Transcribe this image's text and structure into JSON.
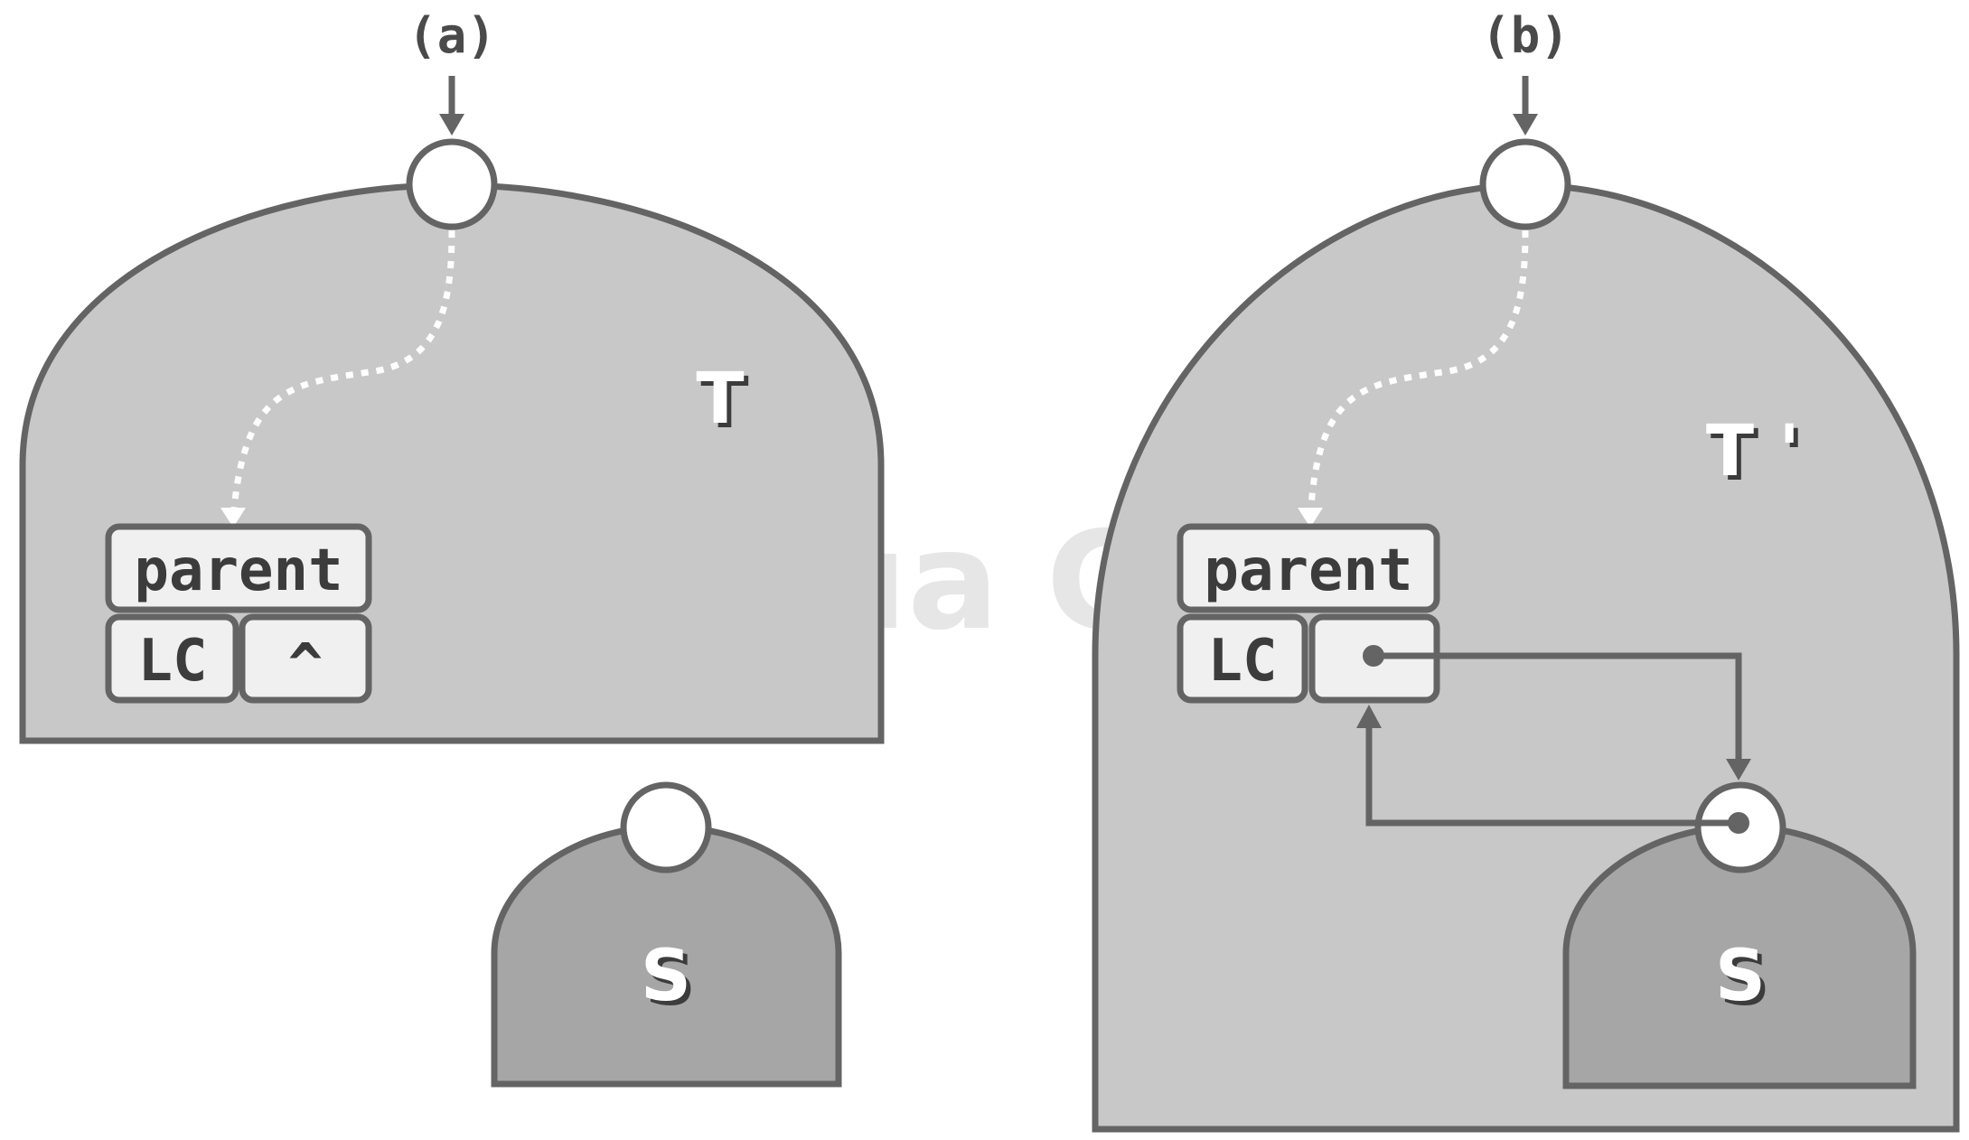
{
  "colors": {
    "stroke": "#646464",
    "tree_fill": "#c8c8c8",
    "subtree_fill": "#a6a6a6",
    "cell_fill": "#f0f0f0",
    "node_fill": "#ffffff",
    "text_dark": "#3c3c3c",
    "label_white": "#ffffff",
    "watermark": "#d2d2d2"
  },
  "watermark": "© Tsinghua Computer",
  "panel_a": {
    "label": "(a)",
    "tree_label": "T",
    "subtree_label": "S",
    "node": {
      "parent_label": "parent",
      "lc_label": "LC",
      "rc_label": "^"
    }
  },
  "panel_b": {
    "label": "(b)",
    "tree_label": "T '",
    "subtree_label": "S",
    "node": {
      "parent_label": "parent",
      "lc_label": "LC",
      "rc_label": ""
    }
  },
  "icons": {
    "root_marker": "circle-node-icon",
    "pointer_arrow": "arrow-down-icon",
    "path_hint": "dotted-path-icon"
  }
}
